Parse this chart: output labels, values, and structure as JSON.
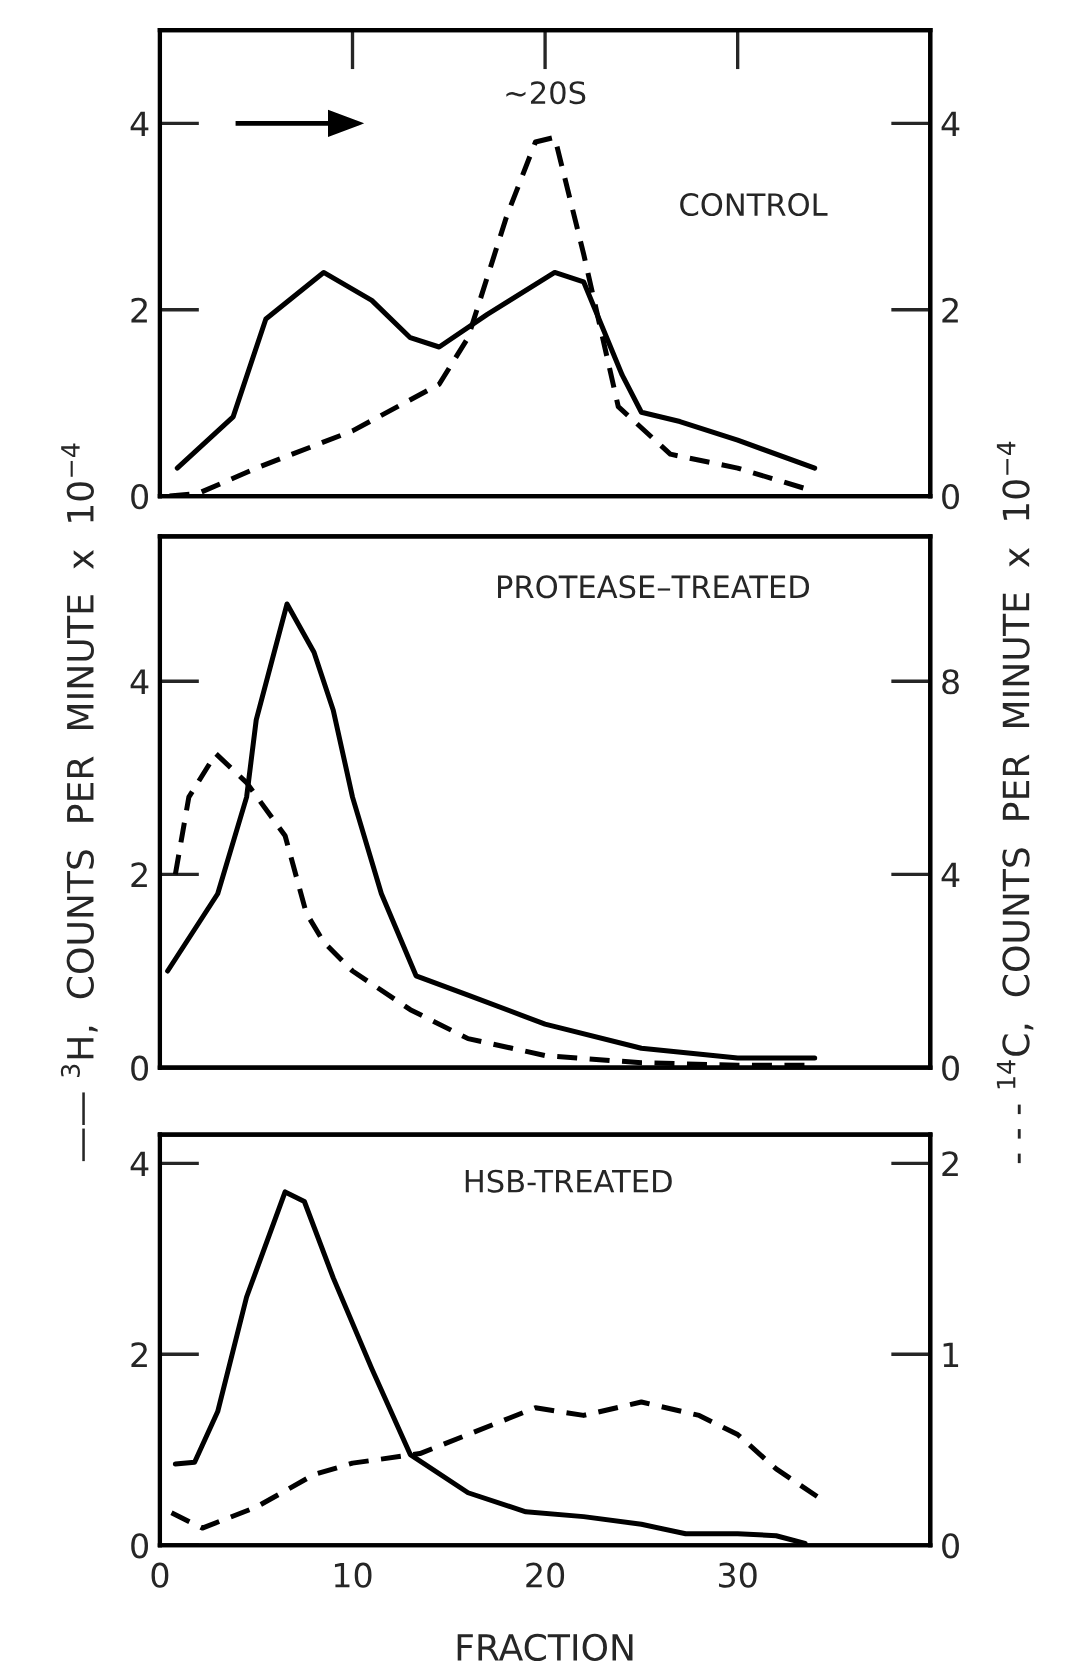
{
  "chart_data": [
    {
      "type": "line",
      "xlim": [
        0,
        40
      ],
      "xticks": [
        10,
        20,
        30
      ],
      "ylim": [
        0,
        5
      ],
      "yticks": [
        0,
        2,
        4
      ],
      "y2lim": [
        0,
        5
      ],
      "y2ticks": [
        0,
        2,
        4
      ],
      "tick_labels": "y",
      "grid": false,
      "annotations": [
        "∼20S",
        "CONTROL"
      ],
      "series": [
        {
          "color": "#000000",
          "line_style": "solid",
          "x": [
            0.9,
            3.8,
            5.5,
            8.5,
            11,
            13,
            14.5,
            17,
            20.5,
            22,
            24,
            25,
            27,
            30,
            34
          ],
          "values": [
            0.3,
            0.85,
            1.9,
            2.4,
            2.1,
            1.7,
            1.6,
            1.95,
            2.4,
            2.3,
            1.3,
            0.9,
            0.8,
            0.6,
            0.3
          ]
        },
        {
          "color": "#000000",
          "line_style": "dashed",
          "axis": "y2",
          "x": [
            0.5,
            2,
            5,
            10,
            14.5,
            16,
            18,
            19.5,
            20.5,
            22,
            23.8,
            26.5,
            30,
            34
          ],
          "values": [
            0,
            0.03,
            0.3,
            0.7,
            1.2,
            1.7,
            3.0,
            3.8,
            3.85,
            2.6,
            0.96,
            0.45,
            0.3,
            0.05
          ]
        }
      ]
    },
    {
      "type": "line",
      "xlim": [
        0,
        40
      ],
      "xticks": [
        10,
        20,
        30
      ],
      "ylim": [
        0,
        5.5
      ],
      "yticks": [
        0,
        2,
        4
      ],
      "y2lim": [
        0,
        11
      ],
      "y2ticks": [
        0,
        4,
        8
      ],
      "tick_labels": "y",
      "grid": false,
      "ylabel": "—— $^{3}$H,  COUNTS  PER  MINUTE  x  10$^{−4}$",
      "y2label": "- - - $^{14}$C,  COUNTS  PER  MINUTE  x  10$^{−4}$",
      "annotations": [
        "PROTEASE–TREATED"
      ],
      "series": [
        {
          "color": "#000000",
          "line_style": "solid",
          "x": [
            0.4,
            3,
            4.5,
            5,
            6.6,
            8,
            9,
            10,
            11.5,
            13.3,
            16,
            20,
            25,
            30,
            34
          ],
          "values": [
            1.0,
            1.8,
            2.8,
            3.6,
            4.8,
            4.3,
            3.7,
            2.8,
            1.8,
            0.95,
            0.75,
            0.45,
            0.2,
            0.1,
            0.1
          ]
        },
        {
          "color": "#000000",
          "line_style": "dashed",
          "axis": "y2",
          "x": [
            0.8,
            1.5,
            2.9,
            4.5,
            6.5,
            7.6,
            8.5,
            10,
            13,
            16,
            20,
            25,
            30,
            34
          ],
          "values": [
            4.0,
            5.6,
            6.5,
            5.9,
            4.8,
            3.2,
            2.6,
            2.0,
            1.2,
            0.6,
            0.25,
            0.1,
            0.05,
            0.05
          ]
        }
      ]
    },
    {
      "type": "line",
      "xlim": [
        0,
        40
      ],
      "xticks": [
        0,
        10,
        20,
        30
      ],
      "ylim": [
        0,
        4.3
      ],
      "yticks": [
        0,
        2,
        4
      ],
      "y2lim": [
        0,
        2.15
      ],
      "y2ticks": [
        0,
        1,
        2
      ],
      "grid": false,
      "xlabel": "FRACTION",
      "annotations": [
        "HSB-TREATED"
      ],
      "series": [
        {
          "color": "#000000",
          "line_style": "solid",
          "x": [
            0.8,
            1.8,
            3,
            4.5,
            6.5,
            7.5,
            9,
            11,
            13,
            16,
            19,
            22,
            25,
            27.3,
            30,
            32,
            33.5
          ],
          "values": [
            0.85,
            0.87,
            1.4,
            2.6,
            3.7,
            3.6,
            2.8,
            1.85,
            0.95,
            0.55,
            0.35,
            0.3,
            0.22,
            0.12,
            0.12,
            0.1,
            0.02
          ]
        },
        {
          "color": "#000000",
          "line_style": "dashed",
          "axis": "y2",
          "x": [
            0.6,
            2.2,
            5,
            8,
            10,
            13.5,
            16,
            19.5,
            22,
            25,
            28,
            30,
            32,
            34.5
          ],
          "values": [
            0.17,
            0.09,
            0.2,
            0.37,
            0.43,
            0.48,
            0.58,
            0.72,
            0.68,
            0.75,
            0.68,
            0.58,
            0.4,
            0.23
          ]
        }
      ]
    }
  ]
}
